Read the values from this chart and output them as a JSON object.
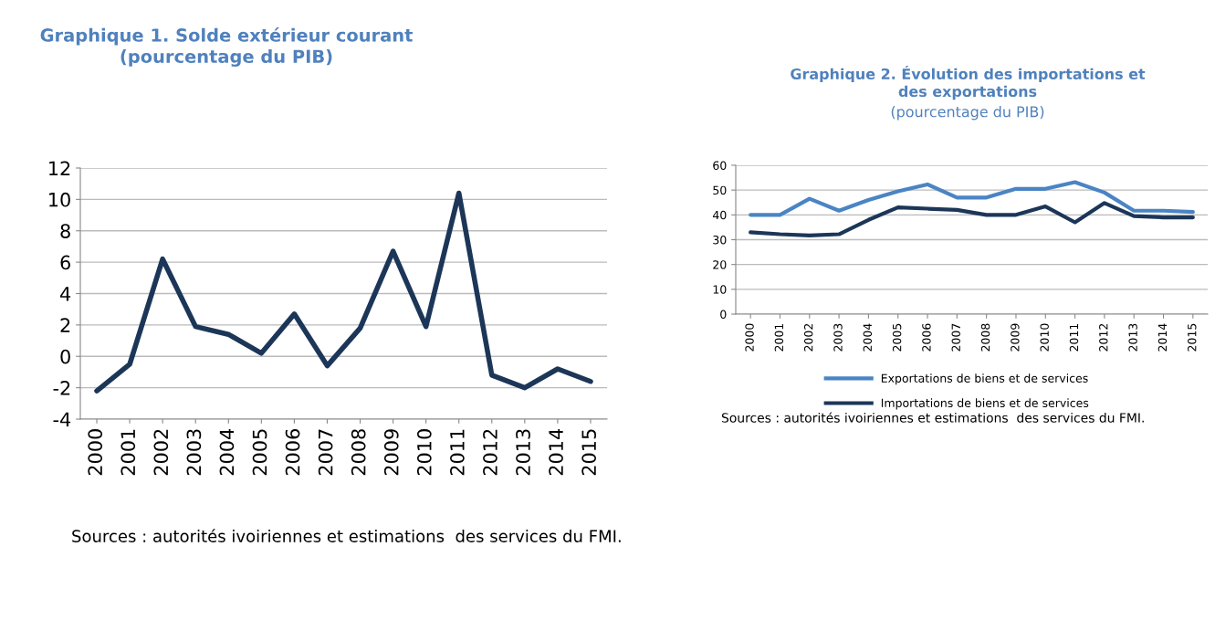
{
  "chart_data": [
    {
      "type": "line",
      "title": "Graphique 1. Solde extérieur courant\n(pourcentage du PIB)",
      "categories": [
        "2000",
        "2001",
        "2002",
        "2003",
        "2004",
        "2005",
        "2006",
        "2007",
        "2008",
        "2009",
        "2010",
        "2011",
        "2012",
        "2013",
        "2014",
        "2015"
      ],
      "series": [
        {
          "color": "#1c3658",
          "values": [
            -2.2,
            -0.5,
            6.2,
            1.9,
            1.4,
            0.2,
            2.7,
            -0.6,
            1.8,
            6.7,
            1.9,
            10.4,
            -1.2,
            -2.0,
            -0.8,
            -1.6
          ]
        }
      ],
      "ylim": [
        -4,
        12
      ],
      "yticks": [
        -4,
        -2,
        0,
        2,
        4,
        6,
        8,
        10,
        12
      ],
      "grid": "y",
      "legend": false,
      "marker": "none",
      "line_style": "solid",
      "annotations": [
        "Sources : autorités ivoiriennes et estimations  des services du FMI."
      ]
    },
    {
      "type": "line",
      "title": "Graphique 2. Évolution des importations et\ndes exportations",
      "subtitle": "(pourcentage du PIB)",
      "categories": [
        "2000",
        "2001",
        "2002",
        "2003",
        "2004",
        "2005",
        "2006",
        "2007",
        "2008",
        "2009",
        "2010",
        "2011",
        "2012",
        "2013",
        "2014",
        "2015"
      ],
      "series": [
        {
          "name": "Exportations de biens et de services",
          "color": "#4a84c4",
          "values": [
            40,
            40,
            46.5,
            41.7,
            46,
            49.5,
            52.3,
            47,
            47,
            50.5,
            50.5,
            53.2,
            49,
            41.7,
            41.7,
            41.2
          ]
        },
        {
          "name": "Importations de biens et de services",
          "color": "#1c3658",
          "values": [
            33,
            32.2,
            31.7,
            32.2,
            38,
            43,
            42.5,
            42,
            40,
            40,
            43.4,
            37,
            44.8,
            39.5,
            39,
            39
          ]
        }
      ],
      "ylim": [
        0,
        60
      ],
      "yticks": [
        0,
        10,
        20,
        30,
        40,
        50,
        60
      ],
      "grid": "y",
      "legend": "bottom",
      "marker": "none",
      "line_style": "solid",
      "annotations": [
        "Sources : autorités ivoiriennes et estimations  des services du FMI."
      ]
    }
  ]
}
